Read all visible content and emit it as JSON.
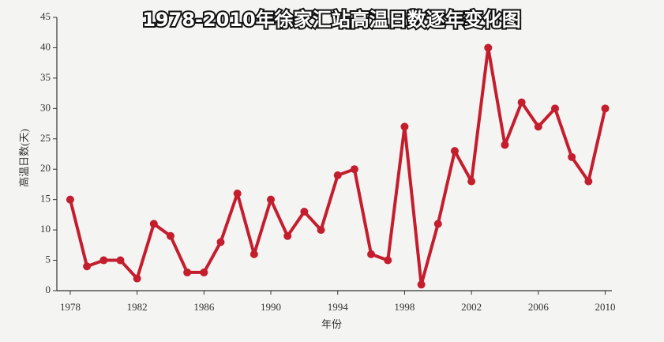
{
  "chart_data": {
    "type": "line",
    "title": "1978-2010年徐家汇站高温日数逐年变化图",
    "x_label": "年份",
    "y_label": "高温日数(天)",
    "x": [
      1978,
      1979,
      1980,
      1981,
      1982,
      1983,
      1984,
      1985,
      1986,
      1987,
      1988,
      1989,
      1990,
      1991,
      1992,
      1993,
      1994,
      1995,
      1996,
      1997,
      1998,
      1999,
      2000,
      2001,
      2002,
      2003,
      2004,
      2005,
      2006,
      2007,
      2008,
      2009,
      2010
    ],
    "series": [
      {
        "name": "高温日数",
        "color": "#c41e2e",
        "values": [
          15,
          4,
          5,
          5,
          2,
          11,
          9,
          3,
          3,
          8,
          16,
          6,
          15,
          9,
          13,
          10,
          19,
          20,
          6,
          5,
          27,
          1,
          11,
          23,
          18,
          40,
          24,
          31,
          27,
          30,
          22,
          18,
          30
        ]
      }
    ],
    "xlim": [
      1977.2,
      2010.4
    ],
    "xticks": [
      1978,
      1982,
      1986,
      1990,
      1994,
      1998,
      2002,
      2006,
      2010
    ],
    "ylim": [
      0,
      45
    ],
    "yticks": [
      0,
      5,
      10,
      15,
      20,
      25,
      30,
      35,
      40,
      45
    ],
    "grid": false
  }
}
